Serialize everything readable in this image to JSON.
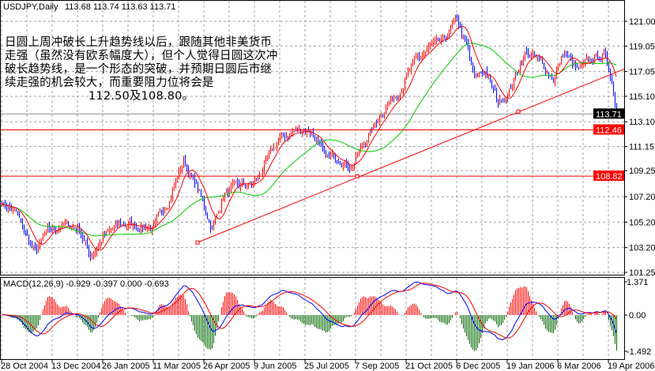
{
  "header": {
    "symbol_label": "USDJPY,Daily",
    "ohlc": "113.68 113.74 113.63 113.71"
  },
  "annotation": {
    "text": "日圆上周冲破长上升趋势线以后，跟随其他非美货币走强（虽然没有欧系幅度大），但个人觉得日圆这次冲破长趋势线，是一个形态的突破，并预期日圆后市继续走强的机会较大，而重要阻力位将会是",
    "levels": "112.50及108.80。"
  },
  "colors": {
    "up": "#ff0000",
    "down": "#0000ff",
    "ma_fast": "#ff0000",
    "ma_slow": "#00cc00",
    "hist_up": "#ff0000",
    "hist_down": "#006600",
    "macd": "#0000ff",
    "signal": "#ff0000",
    "level": "#ff0000",
    "current": "#000000"
  },
  "chart_data": [
    {
      "type": "bar",
      "title": "USDJPY,Daily",
      "ylim": [
        101.25,
        121.0
      ],
      "yticks": [
        "121.00",
        "119.05",
        "117.05",
        "115.10",
        "113.10",
        "111.15",
        "109.25",
        "107.20",
        "105.20",
        "103.20",
        "101.25"
      ],
      "ytick_values": [
        121.0,
        119.05,
        117.05,
        115.1,
        113.1,
        111.15,
        109.25,
        107.2,
        105.2,
        103.2,
        101.25
      ],
      "xticks": [
        "28 Oct 2004",
        "13 Dec 2004",
        "26 Jan 2005",
        "11 Mar 2005",
        "26 Apr 2005",
        "9 Jun 2005",
        "25 Jul 2005",
        "7 Sep 2005",
        "21 Oct 2005",
        "6 Dec 2005",
        "19 Jan 2006",
        "6 Mar 2006",
        "19 Apr 2006"
      ],
      "bars_per_xtick": 32,
      "bar_count": 390,
      "close_waypoints": [
        [
          0,
          106.8
        ],
        [
          9,
          105.9
        ],
        [
          21,
          102.8
        ],
        [
          29,
          104.4
        ],
        [
          39,
          105.0
        ],
        [
          49,
          104.7
        ],
        [
          56,
          102.5
        ],
        [
          64,
          104.0
        ],
        [
          74,
          105.0
        ],
        [
          84,
          105.0
        ],
        [
          96,
          104.7
        ],
        [
          106,
          107.1
        ],
        [
          115,
          110.0
        ],
        [
          124,
          107.8
        ],
        [
          133,
          104.7
        ],
        [
          141,
          107.5
        ],
        [
          151,
          108.1
        ],
        [
          159,
          108.1
        ],
        [
          166,
          109.6
        ],
        [
          176,
          111.8
        ],
        [
          186,
          112.4
        ],
        [
          196,
          112.4
        ],
        [
          204,
          110.3
        ],
        [
          214,
          110.3
        ],
        [
          221,
          109.6
        ],
        [
          231,
          111.8
        ],
        [
          241,
          114.0
        ],
        [
          251,
          115.5
        ],
        [
          261,
          117.7
        ],
        [
          271,
          119.0
        ],
        [
          279,
          119.3
        ],
        [
          288,
          121.1
        ],
        [
          294,
          119.0
        ],
        [
          299,
          116.5
        ],
        [
          306,
          117.1
        ],
        [
          314,
          114.6
        ],
        [
          321,
          115.5
        ],
        [
          331,
          118.6
        ],
        [
          341,
          117.7
        ],
        [
          349,
          116.5
        ],
        [
          356,
          118.6
        ],
        [
          364,
          117.1
        ],
        [
          374,
          118.0
        ],
        [
          381,
          118.3
        ],
        [
          386,
          116.5
        ],
        [
          389,
          113.71
        ]
      ],
      "moving_averages": [
        {
          "name": "MA fast",
          "period": 10
        },
        {
          "name": "MA slow",
          "period": 40
        }
      ],
      "levels": [
        {
          "label": "112.46",
          "value": 112.46
        },
        {
          "label": "108.82",
          "value": 108.82
        }
      ],
      "current": {
        "label": "113.71",
        "value": 113.71
      },
      "trendline": {
        "points": [
          [
            124,
            103.6
          ],
          [
            225,
            108.8
          ],
          [
            327,
            113.9
          ]
        ]
      }
    },
    {
      "type": "bar",
      "title": "MACD(12,26,9) -0.929 -0.397 0.000 -0.693",
      "ylim": [
        -1.492,
        1.371
      ],
      "yticks": [
        "1.371",
        "0.00",
        "-1.492"
      ],
      "ytick_values": [
        1.371,
        0,
        -1.492
      ],
      "params": [
        12,
        26,
        9
      ]
    }
  ]
}
